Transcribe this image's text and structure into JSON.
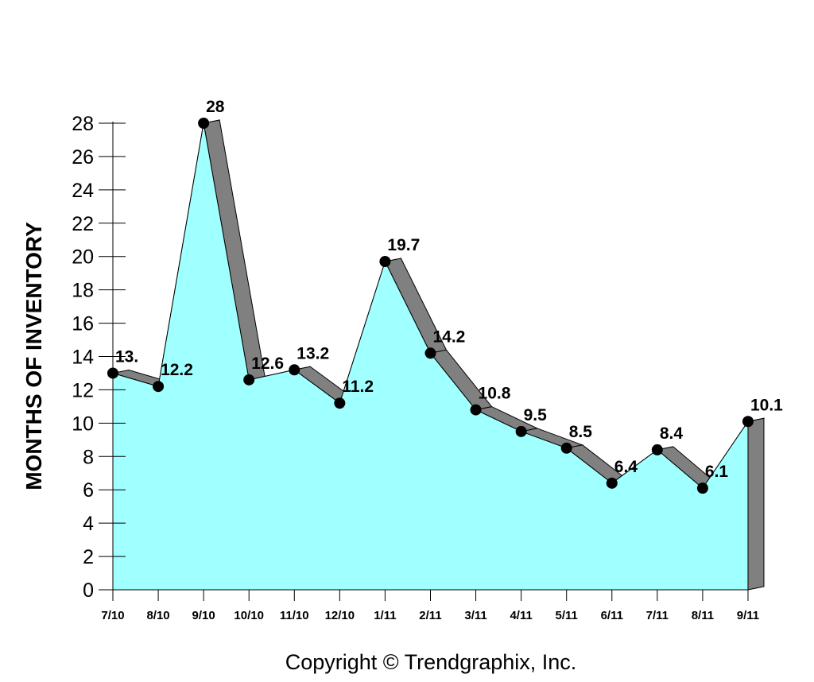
{
  "chart_data": {
    "type": "area",
    "ylabel": "MONTHS OF INVENTORY",
    "xlabel": "",
    "title": "",
    "categories": [
      "7/10",
      "8/10",
      "9/10",
      "10/10",
      "11/10",
      "12/10",
      "1/11",
      "2/11",
      "3/11",
      "4/11",
      "5/11",
      "6/11",
      "7/11",
      "8/11",
      "9/11"
    ],
    "values": [
      13,
      12.2,
      28,
      12.6,
      13.2,
      11.2,
      19.7,
      14.2,
      10.8,
      9.5,
      8.5,
      6.4,
      8.4,
      6.1,
      10.1
    ],
    "data_labels": [
      "13.",
      "12.2",
      "28",
      "12.6",
      "13.2",
      "11.2",
      "19.7",
      "14.2",
      "10.8",
      "9.5",
      "8.5",
      "6.4",
      "8.4",
      "6.1",
      "10.1"
    ],
    "ylim": [
      0,
      28
    ],
    "yticks": [
      0,
      2,
      4,
      6,
      8,
      10,
      12,
      14,
      16,
      18,
      20,
      22,
      24,
      26,
      28
    ],
    "grid": false,
    "legend": "none",
    "colors": {
      "area_fill": "#a0ffff",
      "ridge_fill": "#808080",
      "marker": "#000000"
    }
  },
  "footer": {
    "copyright": "Copyright © Trendgraphix, Inc."
  }
}
